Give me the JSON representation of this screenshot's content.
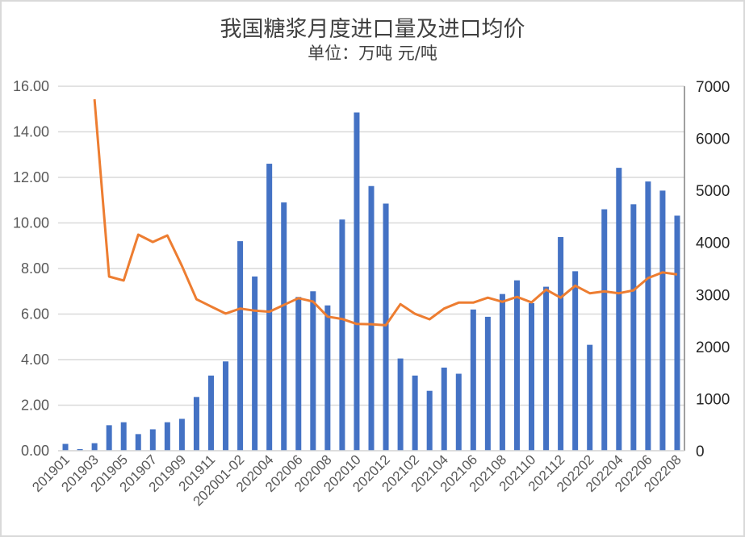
{
  "chart_data": {
    "type": "bar+line",
    "title": "我国糖浆月度进口量及进口均价",
    "subtitle": "单位：万吨  元/吨",
    "categories": [
      "201901",
      "201902",
      "201903",
      "201904",
      "201905",
      "201906",
      "201907",
      "201908",
      "201909",
      "201910",
      "201911",
      "201912",
      "202001-02",
      "202003",
      "202004",
      "202005",
      "202006",
      "202007",
      "202008",
      "202009",
      "202010",
      "202011",
      "202012",
      "202101",
      "202102",
      "202103",
      "202104",
      "202105",
      "202106",
      "202107",
      "202108",
      "202109",
      "202110",
      "202111",
      "202112",
      "202201",
      "202202",
      "202203",
      "202204",
      "202205",
      "202206",
      "202207",
      "202208"
    ],
    "x_tick_labels": [
      "201901",
      "201903",
      "201905",
      "201907",
      "201909",
      "201911",
      "202001-02",
      "202004",
      "202006",
      "202008",
      "202010",
      "202012",
      "202102",
      "202104",
      "202106",
      "202108",
      "202110",
      "202112",
      "202202",
      "202204",
      "202206",
      "202208"
    ],
    "series": [
      {
        "name": "进口量",
        "type": "bar",
        "axis": "left",
        "unit": "万吨",
        "color": "#4472c4",
        "values": [
          0.3,
          0.07,
          0.33,
          1.12,
          1.25,
          0.73,
          0.94,
          1.25,
          1.4,
          2.36,
          3.3,
          3.92,
          9.2,
          7.65,
          12.6,
          10.9,
          6.75,
          7.0,
          6.38,
          10.15,
          14.85,
          11.62,
          10.85,
          4.05,
          3.3,
          2.63,
          3.65,
          3.38,
          6.2,
          5.88,
          6.88,
          7.48,
          6.48,
          7.2,
          9.38,
          7.88,
          4.65,
          10.6,
          12.42,
          10.82,
          11.82,
          11.42,
          10.32
        ]
      },
      {
        "name": "进口均价",
        "type": "line",
        "axis": "right",
        "unit": "元/吨",
        "color": "#ed7d31",
        "values": [
          null,
          null,
          6750,
          3345,
          3270,
          4150,
          4010,
          4135,
          3550,
          2910,
          2770,
          2635,
          2730,
          2690,
          2670,
          2800,
          2930,
          2865,
          2575,
          2530,
          2435,
          2430,
          2410,
          2815,
          2630,
          2525,
          2730,
          2845,
          2845,
          2940,
          2860,
          2955,
          2850,
          3095,
          2940,
          3170,
          3025,
          3060,
          3025,
          3080,
          3315,
          3425,
          3385
        ]
      }
    ],
    "left_axis": {
      "min": 0,
      "max": 16,
      "step": 2,
      "tick_labels": [
        "0.00",
        "2.00",
        "4.00",
        "6.00",
        "8.00",
        "10.00",
        "12.00",
        "14.00",
        "16.00"
      ]
    },
    "right_axis": {
      "min": 0,
      "max": 7000,
      "step": 1000,
      "tick_labels": [
        "0",
        "1000",
        "2000",
        "3000",
        "4000",
        "5000",
        "6000",
        "7000"
      ]
    },
    "xlabel": "",
    "ylabel": "",
    "grid": true,
    "legend": "none"
  }
}
